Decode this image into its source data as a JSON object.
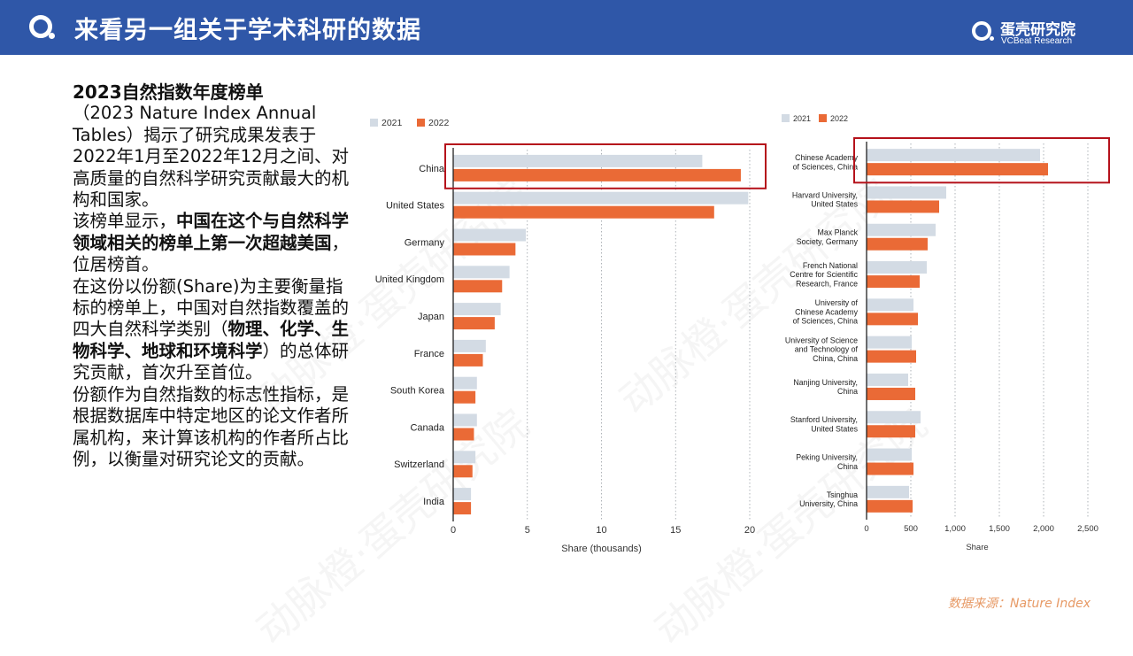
{
  "header": {
    "title": "来看另一组关于学术科研的数据",
    "brand_cn": "蛋壳研究院",
    "brand_en": "VCBeat Research"
  },
  "body": {
    "heading": "2023自然指数年度榜单",
    "p1": "（2023 Nature Index Annual Tables）揭示了研究成果发表于2022年1月至2022年12月之间、对高质量的自然科学研究贡献最大的机构和国家。",
    "p2_a": "该榜单显示，",
    "p2_bold": "中国在这个与自然科学领域相关的榜单上第一次超越美国",
    "p2_b": "，位居榜首。",
    "p3_a": "在这份以份额(Share)为主要衡量指标的榜单上，中国对自然指数覆盖的四大自然科学类别（",
    "p3_bold": "物理、化学、生物科学、地球和环境科学",
    "p3_b": "）的总体研究贡献，首次升至首位。",
    "p4": "份额作为自然指数的标志性指标，是根据数据库中特定地区的论文作者所属机构，来计算该机构的作者所占比例，以衡量对研究论文的贡献。"
  },
  "source": "数据来源：Nature Index",
  "watermark": "动脉橙·蛋壳研究院",
  "colors": {
    "header_bg": "#2f57a8",
    "bar_2021": "#d3dbe4",
    "bar_2022": "#ea6a36",
    "highlight_box": "#b5121b",
    "source_text": "#e79a66"
  },
  "chart_data": [
    {
      "type": "bar",
      "orientation": "horizontal",
      "categories": [
        "China",
        "United States",
        "Germany",
        "United Kingdom",
        "Japan",
        "France",
        "South Korea",
        "Canada",
        "Switzerland",
        "India"
      ],
      "series": [
        {
          "name": "2021",
          "values": [
            16.8,
            19.9,
            4.9,
            3.8,
            3.2,
            2.2,
            1.6,
            1.6,
            1.5,
            1.2
          ]
        },
        {
          "name": "2022",
          "values": [
            19.4,
            17.6,
            4.2,
            3.3,
            2.8,
            2.0,
            1.5,
            1.4,
            1.3,
            1.2
          ]
        }
      ],
      "xlabel": "Share (thousands)",
      "xticks": [
        "0",
        "5",
        "10",
        "15",
        "20"
      ],
      "xlim": [
        0,
        20
      ],
      "grid": "vertical dotted",
      "legend": "top-left",
      "highlight": "China"
    },
    {
      "type": "bar",
      "orientation": "horizontal",
      "categories": [
        [
          "Chinese Academy",
          "of Sciences, China"
        ],
        [
          "Harvard University,",
          "United States"
        ],
        [
          "Max Planck",
          "Society, Germany"
        ],
        [
          "French National",
          "Centre for Scientific",
          "Research, France"
        ],
        [
          "University of",
          "Chinese Academy",
          "of Sciences, China"
        ],
        [
          "University of Science",
          "and Technology of",
          "China, China"
        ],
        [
          "Nanjing University,",
          "China"
        ],
        [
          "Stanford University,",
          "United States"
        ],
        [
          "Peking University,",
          "China"
        ],
        [
          "Tsinghua",
          "University, China"
        ]
      ],
      "series": [
        {
          "name": "2021",
          "values": [
            1960,
            900,
            780,
            680,
            530,
            510,
            470,
            610,
            510,
            480
          ]
        },
        {
          "name": "2022",
          "values": [
            2050,
            820,
            690,
            600,
            580,
            560,
            550,
            550,
            530,
            520
          ]
        }
      ],
      "xlabel": "Share",
      "xticks": [
        "0",
        "500",
        "1,000",
        "1,500",
        "2,000",
        "2,500"
      ],
      "xlim": [
        0,
        2500
      ],
      "grid": "vertical dotted",
      "legend": "top-left",
      "highlight": "Chinese Academy of Sciences, China"
    }
  ]
}
